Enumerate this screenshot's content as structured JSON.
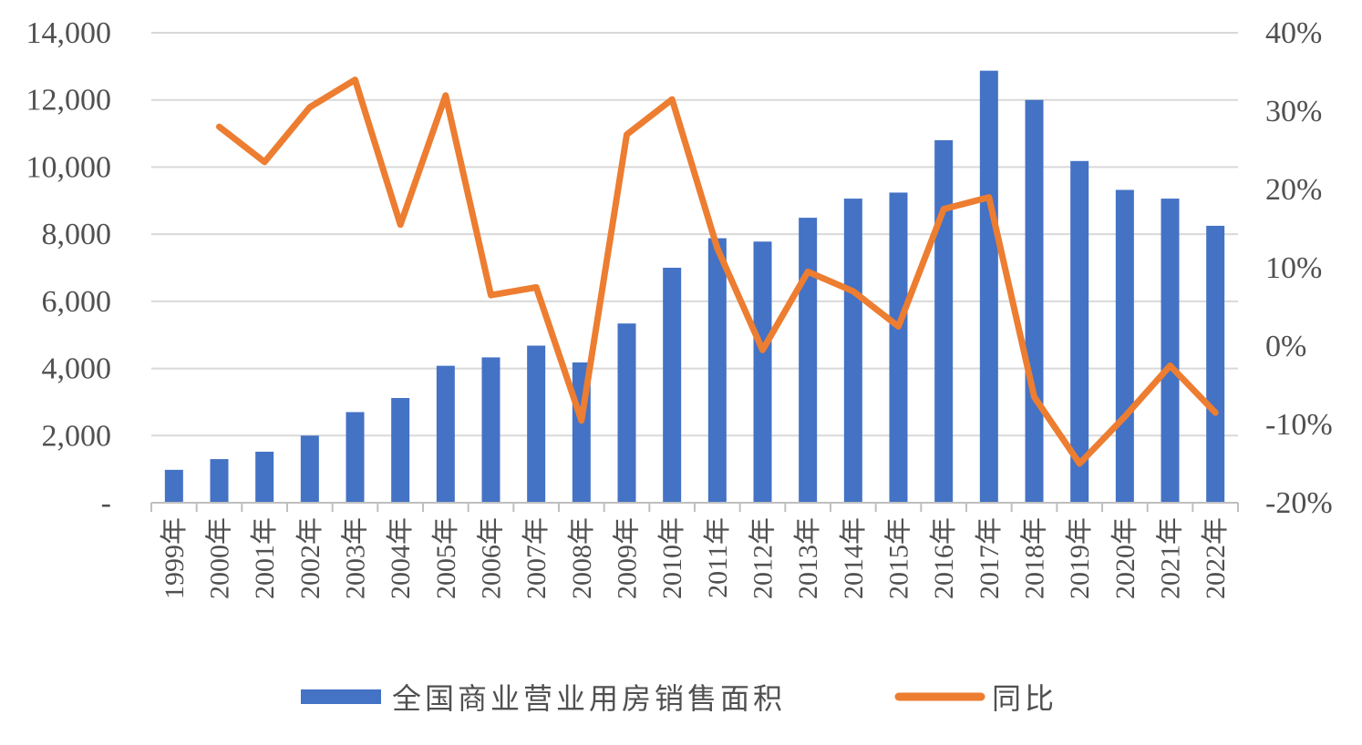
{
  "chart_data": {
    "type": "bar",
    "categories": [
      "1999年",
      "2000年",
      "2001年",
      "2002年",
      "2003年",
      "2004年",
      "2005年",
      "2006年",
      "2007年",
      "2008年",
      "2009年",
      "2010年",
      "2011年",
      "2012年",
      "2013年",
      "2014年",
      "2015年",
      "2016年",
      "2017年",
      "2018年",
      "2019年",
      "2020年",
      "2021年",
      "2022年"
    ],
    "series": [
      {
        "name": "全国商业营业用房销售面积",
        "type": "bar",
        "axis": "left",
        "color": "#4472c4",
        "values": [
          980,
          1300,
          1520,
          2000,
          2700,
          3120,
          4080,
          4330,
          4680,
          4180,
          5340,
          7000,
          7880,
          7780,
          8490,
          9060,
          9240,
          10800,
          12870,
          12000,
          10180,
          9320,
          9060,
          8250
        ]
      },
      {
        "name": "同比",
        "type": "line",
        "axis": "right",
        "color": "#ed7d31",
        "values": [
          null,
          28,
          23.5,
          30.5,
          34,
          15.5,
          32,
          6.5,
          7.5,
          -9.5,
          27,
          31.5,
          12.5,
          -0.5,
          9.5,
          7,
          2.5,
          17.5,
          19,
          -6.5,
          -15,
          -9,
          -2.5,
          -8.5
        ]
      }
    ],
    "y_left": {
      "ylim": [
        0,
        14000
      ],
      "ticks": [
        0,
        2000,
        4000,
        6000,
        8000,
        10000,
        12000,
        14000
      ],
      "tick_labels": [
        "-",
        "2,000",
        "4,000",
        "6,000",
        "8,000",
        "10,000",
        "12,000",
        "14,000"
      ]
    },
    "y_right": {
      "ylim": [
        -20,
        40
      ],
      "ticks": [
        -20,
        -10,
        0,
        10,
        20,
        30,
        40
      ],
      "tick_labels": [
        "-20%",
        "-10%",
        "0%",
        "10%",
        "20%",
        "30%",
        "40%"
      ]
    },
    "grid": true,
    "legend_position": "bottom",
    "title": "",
    "xlabel": "",
    "ylabel": ""
  }
}
